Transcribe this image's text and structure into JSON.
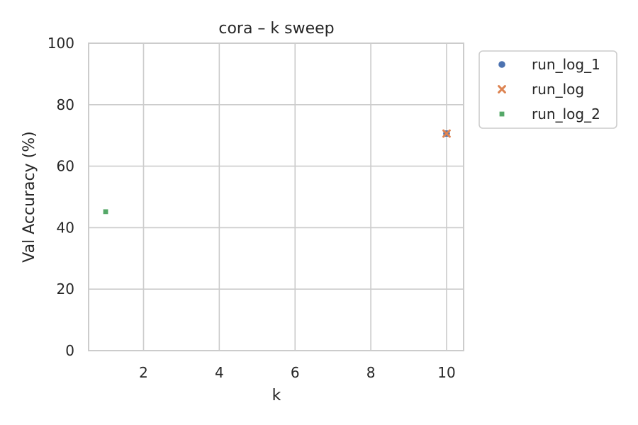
{
  "chart_data": {
    "type": "scatter",
    "title": "cora – k sweep",
    "xlabel": "k",
    "ylabel": "Val Accuracy (%)",
    "xlim": [
      0.55,
      10.45
    ],
    "ylim": [
      0,
      100
    ],
    "xticks": [
      2,
      4,
      6,
      8,
      10
    ],
    "yticks": [
      0,
      20,
      40,
      60,
      80,
      100
    ],
    "grid": true,
    "legend_position": "outside-top-right",
    "series": [
      {
        "name": "run_log_1",
        "marker": "circle",
        "color": "#4c72b0",
        "points": [
          {
            "x": 10,
            "y": 70.6
          }
        ]
      },
      {
        "name": "run_log",
        "marker": "x",
        "color": "#dd8452",
        "points": [
          {
            "x": 10,
            "y": 70.6
          }
        ]
      },
      {
        "name": "run_log_2",
        "marker": "square",
        "color": "#55a868",
        "points": [
          {
            "x": 1,
            "y": 45.2
          }
        ]
      }
    ]
  }
}
